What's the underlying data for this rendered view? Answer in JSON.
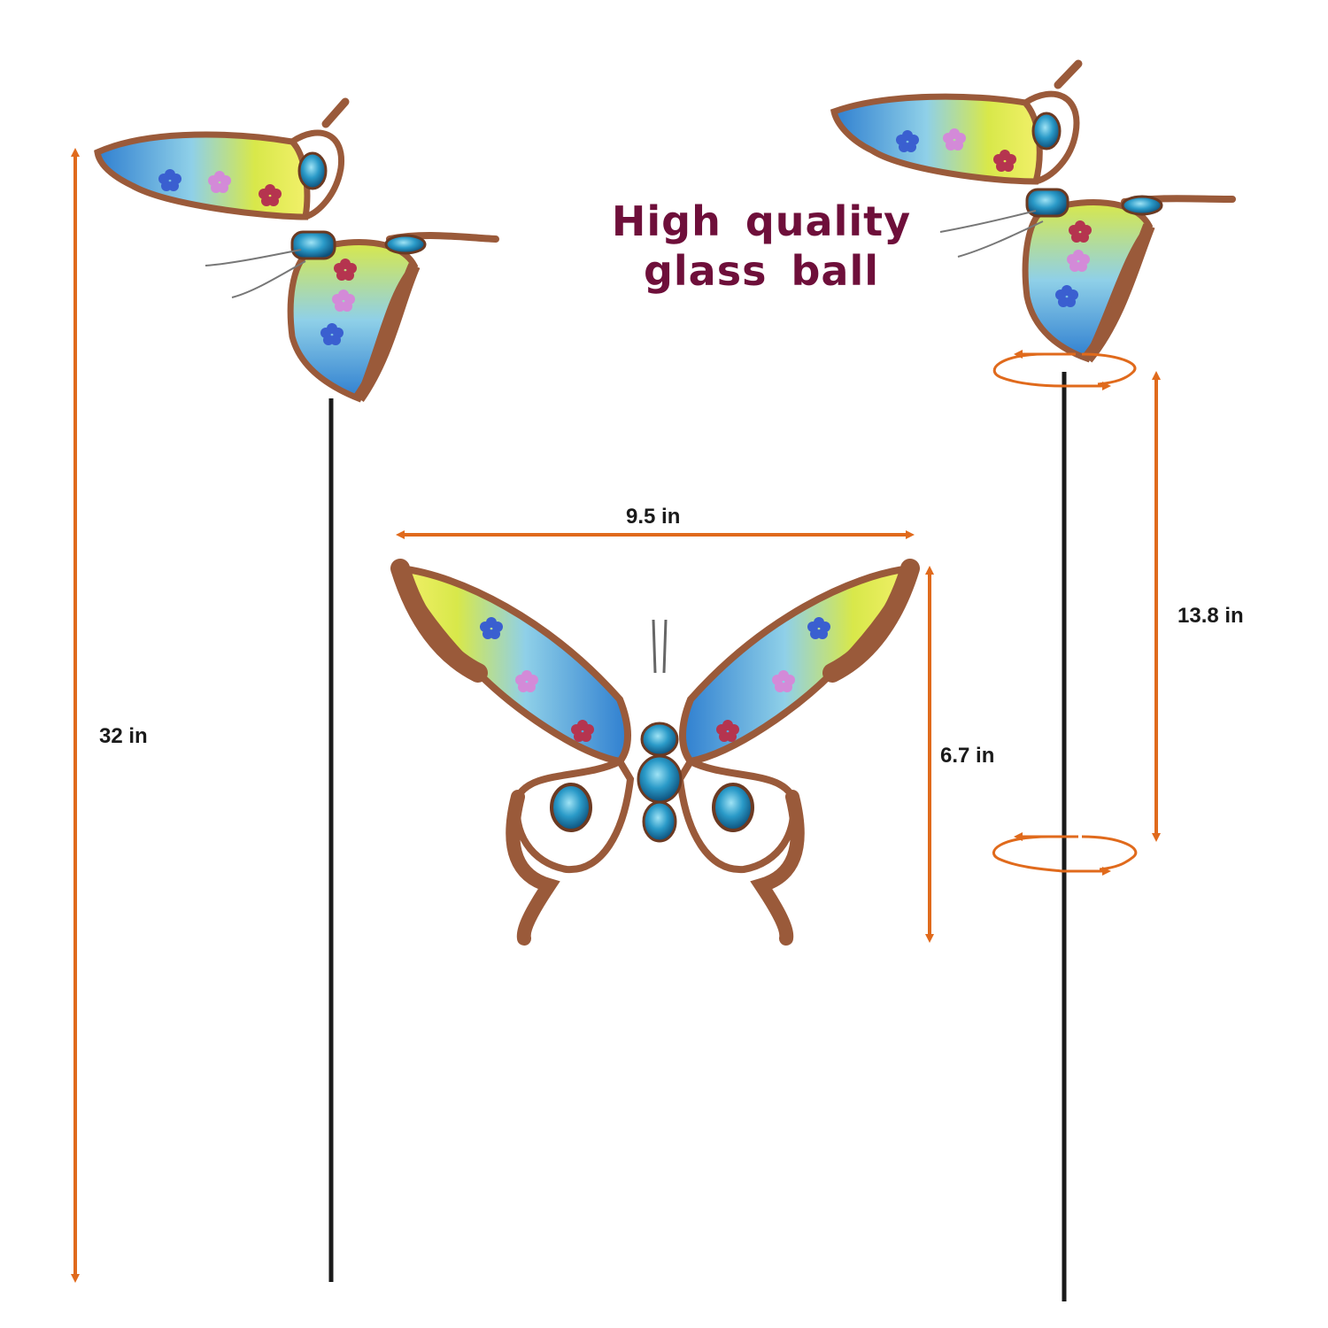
{
  "headline": {
    "line1": "High quality",
    "line2": "glass ball"
  },
  "dimensions": {
    "total_height": "32 in",
    "wingspan": "9.5 in",
    "wing_height": "6.7 in",
    "stake_section": "13.8 in"
  },
  "colors": {
    "arrow": "#e06a1c",
    "headline": "#6e0f3a",
    "copper": "#9a5a3a",
    "glass_blue": "#3e9fd6",
    "glass_yellow": "#d8e84a",
    "stake": "#1a1a1a"
  }
}
